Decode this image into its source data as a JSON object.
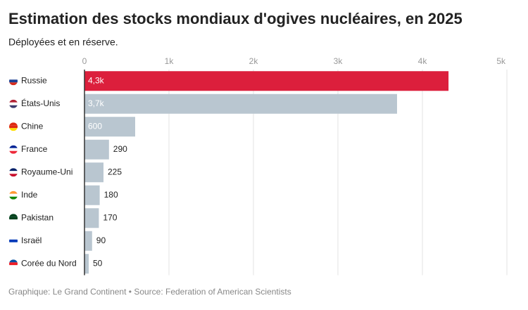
{
  "chart_data": {
    "type": "hbar",
    "title": "Estimation des stocks mondiaux d'ogives nucléaires, en 2025",
    "subtitle": "Déployées et en réserve.",
    "source": "Graphique: Le Grand Continent • Source: Federation of American Scientists",
    "categories": [
      "Russie",
      "États-Unis",
      "Chine",
      "France",
      "Royaume-Uni",
      "Inde",
      "Pakistan",
      "Israël",
      "Corée du Nord"
    ],
    "values": [
      4309,
      3700,
      600,
      290,
      225,
      180,
      170,
      90,
      50
    ],
    "value_labels": [
      "4,3k",
      "3,7k",
      "600",
      "290",
      "225",
      "180",
      "170",
      "90",
      "50"
    ],
    "colors": [
      "#dc1f3c",
      "#b9c6d0",
      "#b9c6d0",
      "#b9c6d0",
      "#b9c6d0",
      "#b9c6d0",
      "#b9c6d0",
      "#b9c6d0",
      "#b9c6d0"
    ],
    "xlim": [
      0,
      5000
    ],
    "xticks": [
      0,
      {
        "value": 1000,
        "label": "1k"
      },
      {
        "value": 2000,
        "label": "2k"
      },
      {
        "value": 3000,
        "label": "3k"
      },
      {
        "value": 4000,
        "label": "4k"
      },
      {
        "value": 5000,
        "label": "5k"
      }
    ],
    "grid": true
  }
}
